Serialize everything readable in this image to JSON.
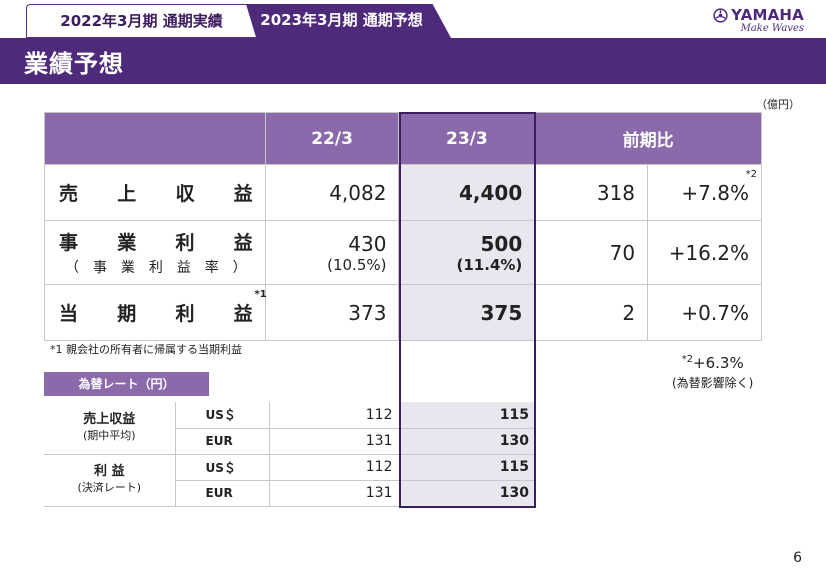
{
  "tabs": {
    "results": "2022年3月期 通期実績",
    "forecast": "2023年3月期 通期予想"
  },
  "logo": {
    "brand": "YAMAHA",
    "tagline": "Make Waves"
  },
  "title": "業績予想",
  "unit": "（億円）",
  "main_table": {
    "headers": {
      "fy22": "22/3",
      "fy23": "23/3",
      "yoy": "前期比"
    },
    "rows": [
      {
        "label_chars": [
          "売",
          "上",
          "収",
          "益"
        ],
        "sublabel_chars": [],
        "fy22": "4,082",
        "fy22_ratio": "",
        "fy23": "4,400",
        "fy23_ratio": "",
        "diff": "318",
        "pct": "+7.8%",
        "pct_mark": "*2",
        "label_mark": ""
      },
      {
        "label_chars": [
          "事",
          "業",
          "利",
          "益"
        ],
        "sublabel_chars": [
          "（",
          "事",
          "業",
          "利",
          "益",
          "率",
          "）"
        ],
        "fy22": "430",
        "fy22_ratio": "(10.5%)",
        "fy23": "500",
        "fy23_ratio": "(11.4%)",
        "diff": "70",
        "pct": "+16.2%",
        "pct_mark": "",
        "label_mark": ""
      },
      {
        "label_chars": [
          "当",
          "期",
          "利",
          "益"
        ],
        "sublabel_chars": [],
        "fy22": "373",
        "fy22_ratio": "",
        "fy23": "375",
        "fy23_ratio": "",
        "diff": "2",
        "pct": "+0.7%",
        "pct_mark": "",
        "label_mark": "*1"
      }
    ]
  },
  "note1": "*1 親会社の所有者に帰属する当期利益",
  "note2": {
    "mark": "*2",
    "value": "+6.3%",
    "paren": "(為替影響除く)"
  },
  "fx_label": "為替レート（円）",
  "fx_table": [
    {
      "group": "売上収益",
      "group_paren": "(期中平均)",
      "rows": [
        {
          "currency": "US＄",
          "fy22": "112",
          "fy23": "115"
        },
        {
          "currency": "EUR",
          "fy22": "131",
          "fy23": "130"
        }
      ]
    },
    {
      "group": "利 益",
      "group_paren": "(決済レート)",
      "rows": [
        {
          "currency": "US＄",
          "fy22": "112",
          "fy23": "115"
        },
        {
          "currency": "EUR",
          "fy22": "131",
          "fy23": "130"
        }
      ]
    }
  ],
  "page_number": "6",
  "colors": {
    "brand_purple": "#4d2a7a",
    "header_purple": "#8a6aaa",
    "highlight_bg": "#e8e6ee"
  },
  "icons": {
    "logo_mark": "tuning-forks-emblem-icon"
  }
}
